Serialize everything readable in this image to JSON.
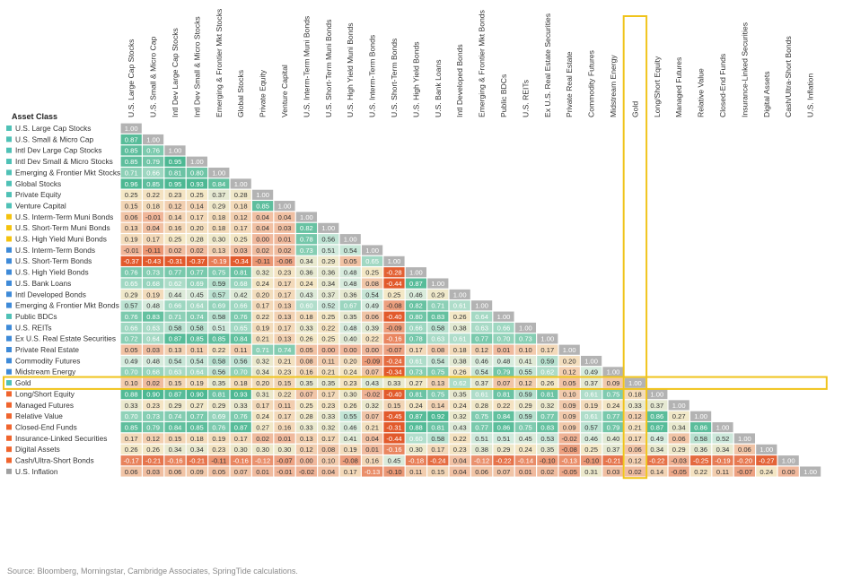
{
  "chart_data": {
    "type": "heatmap",
    "row_header": "Asset Class",
    "highlight_label": "Gold",
    "labels": [
      "U.S. Large Cap Stocks",
      "U.S. Small & Micro Cap",
      "Intl Dev Large Cap Stocks",
      "Intl Dev Small & Micro Stocks",
      "Emerging & Frontier Mkt Stocks",
      "Global Stocks",
      "Private Equity",
      "Venture Capital",
      "U.S. Interm-Term Muni Bonds",
      "U.S. Short-Term Muni Bonds",
      "U.S. High Yield Muni Bonds",
      "U.S. Interm-Term Bonds",
      "U.S. Short-Term Bonds",
      "U.S. High Yield Bonds",
      "U.S. Bank Loans",
      "Intl Developed Bonds",
      "Emerging & Frontier Mkt Bonds",
      "Public BDCs",
      "U.S. REITs",
      "Ex U.S. Real Estate Securities",
      "Private Real Estate",
      "Commodity Futures",
      "Midstream Energy",
      "Gold",
      "Long/Short Equity",
      "Managed Futures",
      "Relative Value",
      "Closed-End Funds",
      "Insurance-Linked Securities",
      "Digital Assets",
      "Cash/Ultra-Short Bonds",
      "U.S. Inflation"
    ],
    "category_colors": [
      "#4fc1b6",
      "#4fc1b6",
      "#4fc1b6",
      "#4fc1b6",
      "#4fc1b6",
      "#4fc1b6",
      "#4fc1b6",
      "#4fc1b6",
      "#f4c20d",
      "#f4c20d",
      "#f4c20d",
      "#3e8ad8",
      "#3e8ad8",
      "#3e8ad8",
      "#3e8ad8",
      "#3e8ad8",
      "#3e8ad8",
      "#4fc1b6",
      "#3e8ad8",
      "#3e8ad8",
      "#3e8ad8",
      "#3e8ad8",
      "#3e8ad8",
      "#4fc1b6",
      "#f0642d",
      "#f0642d",
      "#f0642d",
      "#f0642d",
      "#f0642d",
      "#f0642d",
      "#f0642d",
      "#a0a0a0"
    ],
    "matrix": [
      [
        "1.00"
      ],
      [
        "0.87",
        "1.00"
      ],
      [
        "0.85",
        "0.76",
        "1.00"
      ],
      [
        "0.85",
        "0.79",
        "0.95",
        "1.00"
      ],
      [
        "0.71",
        "0.66",
        "0.81",
        "0.80",
        "1.00"
      ],
      [
        "0.96",
        "0.85",
        "0.95",
        "0.93",
        "0.84",
        "1.00"
      ],
      [
        "0.25",
        "0.22",
        "0.23",
        "0.25",
        "0.37",
        "0.28",
        "1.00"
      ],
      [
        "0.15",
        "0.18",
        "0.12",
        "0.14",
        "0.29",
        "0.18",
        "0.85",
        "1.00"
      ],
      [
        "0.06",
        "-0.01",
        "0.14",
        "0.17",
        "0.18",
        "0.12",
        "0.04",
        "0.04",
        "1.00"
      ],
      [
        "0.13",
        "0.04",
        "0.16",
        "0.20",
        "0.18",
        "0.17",
        "0.04",
        "0.03",
        "0.82",
        "1.00"
      ],
      [
        "0.19",
        "0.17",
        "0.25",
        "0.28",
        "0.30",
        "0.25",
        "0.00",
        "0.01",
        "0.78",
        "0.56",
        "1.00"
      ],
      [
        "-0.01",
        "-0.11",
        "0.02",
        "0.02",
        "0.13",
        "0.03",
        "0.02",
        "0.02",
        "0.73",
        "0.51",
        "0.54",
        "1.00"
      ],
      [
        "-0.37",
        "-0.43",
        "-0.31",
        "-0.37",
        "-0.19",
        "-0.34",
        "-0.11",
        "-0.06",
        "0.34",
        "0.29",
        "0.05",
        "0.65",
        "1.00"
      ],
      [
        "0.76",
        "0.73",
        "0.77",
        "0.77",
        "0.75",
        "0.81",
        "0.32",
        "0.23",
        "0.36",
        "0.36",
        "0.48",
        "0.25",
        "-0.28",
        "1.00"
      ],
      [
        "0.65",
        "0.68",
        "0.62",
        "0.69",
        "0.59",
        "0.68",
        "0.24",
        "0.17",
        "0.24",
        "0.34",
        "0.48",
        "0.08",
        "-0.44",
        "0.87",
        "1.00"
      ],
      [
        "0.29",
        "0.19",
        "0.44",
        "0.45",
        "0.57",
        "0.42",
        "0.20",
        "0.17",
        "0.43",
        "0.37",
        "0.36",
        "0.54",
        "0.25",
        "0.46",
        "0.29",
        "1.00"
      ],
      [
        "0.57",
        "0.48",
        "0.66",
        "0.64",
        "0.69",
        "0.66",
        "0.17",
        "0.13",
        "0.60",
        "0.52",
        "0.67",
        "0.49",
        "-0.08",
        "0.82",
        "0.71",
        "0.61",
        "1.00"
      ],
      [
        "0.76",
        "0.83",
        "0.71",
        "0.74",
        "0.58",
        "0.76",
        "0.22",
        "0.13",
        "0.18",
        "0.25",
        "0.35",
        "0.06",
        "-0.40",
        "0.80",
        "0.83",
        "0.26",
        "0.64",
        "1.00"
      ],
      [
        "0.66",
        "0.63",
        "0.58",
        "0.58",
        "0.51",
        "0.65",
        "0.19",
        "0.17",
        "0.33",
        "0.22",
        "0.48",
        "0.39",
        "-0.09",
        "0.66",
        "0.58",
        "0.38",
        "0.63",
        "0.66",
        "1.00"
      ],
      [
        "0.72",
        "0.64",
        "0.87",
        "0.85",
        "0.85",
        "0.84",
        "0.21",
        "0.13",
        "0.26",
        "0.25",
        "0.40",
        "0.22",
        "-0.16",
        "0.78",
        "0.63",
        "0.61",
        "0.77",
        "0.70",
        "0.73",
        "1.00"
      ],
      [
        "0.05",
        "0.03",
        "0.13",
        "0.11",
        "0.22",
        "0.11",
        "0.71",
        "0.74",
        "0.05",
        "0.00",
        "0.00",
        "0.00",
        "-0.07",
        "0.17",
        "0.08",
        "0.18",
        "0.12",
        "0.01",
        "0.10",
        "0.17",
        "1.00"
      ],
      [
        "0.49",
        "0.48",
        "0.54",
        "0.54",
        "0.58",
        "0.56",
        "0.32",
        "0.21",
        "0.08",
        "0.11",
        "0.20",
        "-0.09",
        "-0.24",
        "0.61",
        "0.54",
        "0.38",
        "0.46",
        "0.48",
        "0.41",
        "0.59",
        "0.20",
        "1.00"
      ],
      [
        "0.70",
        "0.68",
        "0.63",
        "0.64",
        "0.56",
        "0.70",
        "0.34",
        "0.23",
        "0.16",
        "0.21",
        "0.24",
        "0.07",
        "-0.34",
        "0.73",
        "0.75",
        "0.26",
        "0.54",
        "0.79",
        "0.55",
        "0.62",
        "0.12",
        "0.49",
        "1.00"
      ],
      [
        "0.10",
        "0.02",
        "0.15",
        "0.19",
        "0.35",
        "0.18",
        "0.20",
        "0.15",
        "0.35",
        "0.35",
        "0.23",
        "0.43",
        "0.33",
        "0.27",
        "0.13",
        "0.62",
        "0.37",
        "0.07",
        "0.12",
        "0.26",
        "0.05",
        "0.37",
        "0.09",
        "1.00"
      ],
      [
        "0.88",
        "0.90",
        "0.87",
        "0.90",
        "0.81",
        "0.93",
        "0.31",
        "0.22",
        "0.07",
        "0.17",
        "0.30",
        "-0.02",
        "-0.40",
        "0.81",
        "0.75",
        "0.35",
        "0.61",
        "0.81",
        "0.59",
        "0.81",
        "0.10",
        "0.61",
        "0.75",
        "0.18",
        "1.00"
      ],
      [
        "0.33",
        "0.23",
        "0.29",
        "0.27",
        "0.29",
        "0.33",
        "0.17",
        "0.11",
        "0.25",
        "0.23",
        "0.26",
        "0.32",
        "0.15",
        "0.24",
        "0.14",
        "0.24",
        "0.28",
        "0.22",
        "0.29",
        "0.32",
        "0.09",
        "0.19",
        "0.24",
        "0.33",
        "0.37",
        "1.00"
      ],
      [
        "0.70",
        "0.73",
        "0.74",
        "0.77",
        "0.69",
        "0.76",
        "0.24",
        "0.17",
        "0.28",
        "0.33",
        "0.55",
        "0.07",
        "-0.45",
        "0.87",
        "0.92",
        "0.32",
        "0.75",
        "0.84",
        "0.59",
        "0.77",
        "0.09",
        "0.61",
        "0.77",
        "0.12",
        "0.86",
        "0.27",
        "1.00"
      ],
      [
        "0.85",
        "0.79",
        "0.84",
        "0.85",
        "0.76",
        "0.87",
        "0.27",
        "0.16",
        "0.33",
        "0.32",
        "0.46",
        "0.21",
        "-0.31",
        "0.88",
        "0.81",
        "0.43",
        "0.77",
        "0.86",
        "0.75",
        "0.83",
        "0.09",
        "0.57",
        "0.79",
        "0.21",
        "0.87",
        "0.34",
        "0.86",
        "1.00"
      ],
      [
        "0.17",
        "0.12",
        "0.15",
        "0.18",
        "0.19",
        "0.17",
        "0.02",
        "0.01",
        "0.13",
        "0.17",
        "0.41",
        "0.04",
        "-0.44",
        "0.60",
        "0.58",
        "0.22",
        "0.51",
        "0.51",
        "0.45",
        "0.53",
        "-0.02",
        "0.46",
        "0.40",
        "0.17",
        "0.49",
        "0.06",
        "0.58",
        "0.52",
        "1.00"
      ],
      [
        "0.26",
        "0.26",
        "0.34",
        "0.34",
        "0.23",
        "0.30",
        "0.30",
        "0.30",
        "0.12",
        "0.08",
        "0.19",
        "0.01",
        "-0.16",
        "0.30",
        "0.17",
        "0.23",
        "0.38",
        "0.29",
        "0.24",
        "0.35",
        "-0.08",
        "0.25",
        "0.37",
        "0.06",
        "0.34",
        "0.29",
        "0.36",
        "0.34",
        "0.06",
        "1.00"
      ],
      [
        "-0.17",
        "-0.21",
        "-0.16",
        "-0.21",
        "-0.11",
        "-0.16",
        "-0.12",
        "-0.07",
        "0.00",
        "0.10",
        "-0.08",
        "0.16",
        "0.45",
        "-0.18",
        "-0.24",
        "0.04",
        "-0.12",
        "-0.22",
        "-0.14",
        "-0.10",
        "-0.13",
        "-0.10",
        "-0.21",
        "0.12",
        "-0.22",
        "-0.03",
        "-0.25",
        "-0.19",
        "-0.20",
        "-0.27",
        "1.00"
      ],
      [
        "0.06",
        "0.03",
        "0.06",
        "0.09",
        "0.05",
        "0.07",
        "0.01",
        "-0.01",
        "-0.02",
        "0.04",
        "0.17",
        "-0.13",
        "-0.10",
        "0.11",
        "0.15",
        "0.04",
        "0.06",
        "0.07",
        "0.01",
        "0.02",
        "-0.05",
        "0.31",
        "0.03",
        "0.02",
        "0.14",
        "-0.05",
        "0.22",
        "0.11",
        "-0.07",
        "0.24",
        "0.00",
        "1.00"
      ]
    ]
  },
  "colors": {
    "diagonal": "#b3b3b3",
    "pos_strong": "#4db893",
    "pos_light": "#d4ebdf",
    "neutral": "#f4e8c6",
    "neg_light": "#f0b89c",
    "neg_strong": "#e25a2c",
    "highlight_border": "#f0c41c"
  },
  "source": "Source: Bloomberg, Morningstar, Cambridge Associates, SpringTide calculations."
}
